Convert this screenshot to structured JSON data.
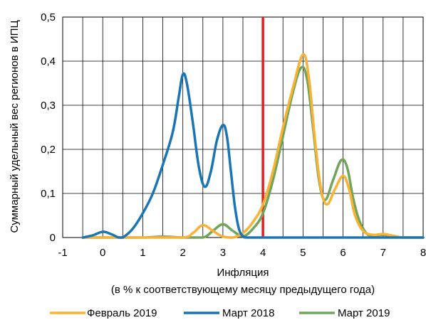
{
  "chart_data": {
    "type": "line",
    "xlabel": "Инфляция",
    "xlabel_sub": "(в % к соответствующему месяцу предыдущего года)",
    "ylabel": "Суммарный удельный вес регионов в ИПЦ",
    "xlim": [
      -1,
      8
    ],
    "ylim": [
      0,
      0.5
    ],
    "x_ticks": [
      -1,
      0,
      1,
      2,
      3,
      4,
      5,
      6,
      7,
      8
    ],
    "x_tick_labels": [
      "-1",
      "0",
      "1",
      "2",
      "3",
      "4",
      "5",
      "6",
      "7",
      "8"
    ],
    "y_ticks": [
      0,
      0.1,
      0.2,
      0.3,
      0.4,
      0.5
    ],
    "y_tick_labels": [
      "0",
      "0,1",
      "0,2",
      "0,3",
      "0,4",
      "0,5"
    ],
    "grid": true,
    "legend_position": "bottom",
    "reference_line": {
      "x": 4,
      "color": "#e31e24"
    },
    "series": [
      {
        "name": "Февраль 2019",
        "color": "#f9b234",
        "points": [
          [
            -0.5,
            0
          ],
          [
            0,
            0
          ],
          [
            1,
            0
          ],
          [
            2,
            0
          ],
          [
            2.25,
            0.01
          ],
          [
            2.5,
            0.028
          ],
          [
            2.75,
            0.015
          ],
          [
            3,
            0.002
          ],
          [
            3.25,
            0
          ],
          [
            3.5,
            0.01
          ],
          [
            3.75,
            0.035
          ],
          [
            4,
            0.075
          ],
          [
            4.25,
            0.15
          ],
          [
            4.5,
            0.25
          ],
          [
            4.75,
            0.34
          ],
          [
            5,
            0.415
          ],
          [
            5.15,
            0.36
          ],
          [
            5.3,
            0.22
          ],
          [
            5.45,
            0.11
          ],
          [
            5.6,
            0.075
          ],
          [
            5.8,
            0.11
          ],
          [
            6,
            0.14
          ],
          [
            6.15,
            0.11
          ],
          [
            6.3,
            0.05
          ],
          [
            6.5,
            0.015
          ],
          [
            6.75,
            0.006
          ],
          [
            7,
            0.008
          ],
          [
            7.25,
            0.004
          ],
          [
            7.5,
            0
          ],
          [
            8,
            0
          ]
        ]
      },
      {
        "name": "Март 2018",
        "color": "#1b75b4",
        "points": [
          [
            -0.5,
            0
          ],
          [
            -0.25,
            0.005
          ],
          [
            0,
            0.013
          ],
          [
            0.2,
            0.008
          ],
          [
            0.4,
            0
          ],
          [
            0.5,
            0
          ],
          [
            0.75,
            0.02
          ],
          [
            1,
            0.055
          ],
          [
            1.25,
            0.1
          ],
          [
            1.5,
            0.165
          ],
          [
            1.75,
            0.24
          ],
          [
            1.9,
            0.32
          ],
          [
            2,
            0.37
          ],
          [
            2.1,
            0.35
          ],
          [
            2.25,
            0.26
          ],
          [
            2.4,
            0.16
          ],
          [
            2.55,
            0.115
          ],
          [
            2.7,
            0.15
          ],
          [
            2.85,
            0.22
          ],
          [
            3,
            0.255
          ],
          [
            3.1,
            0.23
          ],
          [
            3.2,
            0.15
          ],
          [
            3.3,
            0.07
          ],
          [
            3.4,
            0.02
          ],
          [
            3.5,
            0.003
          ],
          [
            3.6,
            0
          ],
          [
            4,
            0
          ],
          [
            5,
            0
          ],
          [
            6,
            0
          ],
          [
            7,
            0
          ],
          [
            8,
            0
          ]
        ]
      },
      {
        "name": "Март 2019",
        "color": "#70a55b",
        "points": [
          [
            -0.5,
            0
          ],
          [
            0,
            0
          ],
          [
            1,
            0
          ],
          [
            1.5,
            0.002
          ],
          [
            2,
            0
          ],
          [
            2.5,
            0
          ],
          [
            2.75,
            0.015
          ],
          [
            3,
            0.03
          ],
          [
            3.25,
            0.015
          ],
          [
            3.5,
            0.003
          ],
          [
            3.75,
            0.02
          ],
          [
            4,
            0.055
          ],
          [
            4.25,
            0.13
          ],
          [
            4.5,
            0.23
          ],
          [
            4.75,
            0.33
          ],
          [
            4.95,
            0.385
          ],
          [
            5.1,
            0.36
          ],
          [
            5.25,
            0.25
          ],
          [
            5.4,
            0.13
          ],
          [
            5.55,
            0.085
          ],
          [
            5.75,
            0.13
          ],
          [
            5.95,
            0.175
          ],
          [
            6.1,
            0.16
          ],
          [
            6.25,
            0.09
          ],
          [
            6.4,
            0.04
          ],
          [
            6.6,
            0.008
          ],
          [
            6.8,
            0.005
          ],
          [
            7,
            0.006
          ],
          [
            7.25,
            0.003
          ],
          [
            7.5,
            0
          ],
          [
            8,
            0
          ]
        ]
      }
    ]
  }
}
